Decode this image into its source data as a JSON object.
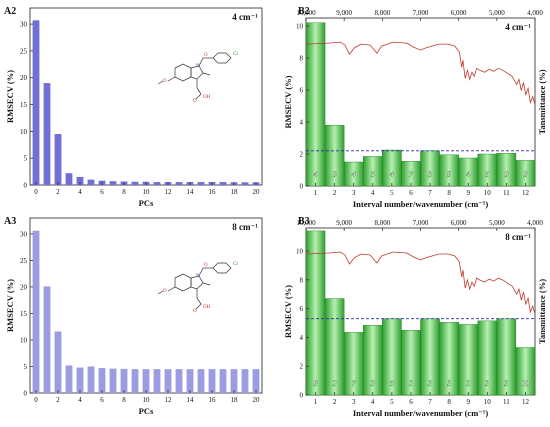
{
  "chart_data": [
    {
      "id": "A2",
      "type": "bar",
      "panel_label": "A2",
      "resolution": "4 cm⁻¹",
      "xlabel": "PCs",
      "ylabel": "RMSECV (%)",
      "categories": [
        0,
        1,
        2,
        3,
        4,
        5,
        6,
        7,
        8,
        9,
        10,
        11,
        12,
        13,
        14,
        15,
        16,
        17,
        18,
        19,
        20
      ],
      "values": [
        30.7,
        19.0,
        9.5,
        2.2,
        1.5,
        1.0,
        0.8,
        0.7,
        0.65,
        0.6,
        0.6,
        0.55,
        0.55,
        0.55,
        0.55,
        0.55,
        0.55,
        0.55,
        0.5,
        0.5,
        0.5
      ],
      "xticks": [
        0,
        2,
        4,
        6,
        8,
        10,
        12,
        14,
        16,
        18,
        20
      ],
      "ylim": [
        0,
        33
      ],
      "yticks": [
        0,
        5,
        10,
        15,
        20,
        25,
        30
      ],
      "bar_color": "#6f6fd6",
      "molecule_labels": [
        "Cl",
        "N",
        "O",
        "OH",
        "O",
        "O"
      ]
    },
    {
      "id": "A3",
      "type": "bar",
      "panel_label": "A3",
      "resolution": "8 cm⁻¹",
      "xlabel": "PCs",
      "ylabel": "RMSECV (%)",
      "categories": [
        0,
        1,
        2,
        3,
        4,
        5,
        6,
        7,
        8,
        9,
        10,
        11,
        12,
        13,
        14,
        15,
        16,
        17,
        18,
        19,
        20
      ],
      "values": [
        30.6,
        20.1,
        11.6,
        5.2,
        4.8,
        5.0,
        4.7,
        4.6,
        4.55,
        4.5,
        4.5,
        4.5,
        4.5,
        4.5,
        4.5,
        4.5,
        4.5,
        4.5,
        4.5,
        4.5,
        4.5
      ],
      "xticks": [
        0,
        2,
        4,
        6,
        8,
        10,
        12,
        14,
        16,
        18,
        20
      ],
      "ylim": [
        0,
        33
      ],
      "yticks": [
        0,
        5,
        10,
        15,
        20,
        25,
        30
      ],
      "bar_color": "#9c9ce3",
      "molecule_labels": [
        "Cl",
        "N",
        "O",
        "OH",
        "O",
        "O"
      ]
    },
    {
      "id": "B2",
      "type": "bar",
      "panel_label": "B2",
      "resolution": "4 cm⁻¹",
      "xlabel": "Interval number/wavenumber (cm⁻¹)",
      "ylabel": "RMSECV (%)",
      "y2label": "Tansmittance (%)",
      "categories": [
        1,
        2,
        3,
        4,
        5,
        6,
        7,
        8,
        9,
        10,
        11,
        12
      ],
      "values": [
        10.2,
        3.8,
        1.5,
        1.85,
        2.25,
        1.55,
        2.2,
        1.95,
        1.75,
        2.0,
        2.05,
        1.6
      ],
      "pcs": [
        "4",
        "9",
        "4",
        "5",
        "4",
        "7",
        "3",
        "9",
        "4",
        "5",
        "9",
        "9"
      ],
      "reference_line": 2.2,
      "ylim": [
        0,
        10.5
      ],
      "yticks": [
        0,
        2,
        4,
        6,
        8,
        10
      ],
      "top_axis_ticks": [
        "10,000",
        "9,000",
        "8,000",
        "7,000",
        "6,000",
        "5,000",
        "4,000"
      ],
      "top_axis_values": [
        10000,
        9000,
        8000,
        7000,
        6000,
        5000,
        4000
      ],
      "transmittance_line_color": "#c0392b"
    },
    {
      "id": "B3",
      "type": "bar",
      "panel_label": "B3",
      "resolution": "8 cm⁻¹",
      "xlabel": "Interval number/wavenumber (cm⁻¹)",
      "ylabel": "RMSECV (%)",
      "y2label": "Tansmittance (%)",
      "categories": [
        1,
        2,
        3,
        4,
        5,
        6,
        7,
        8,
        9,
        10,
        11,
        12
      ],
      "values": [
        11.4,
        6.7,
        4.35,
        4.85,
        5.3,
        4.5,
        5.3,
        5.05,
        4.9,
        5.15,
        5.3,
        3.3
      ],
      "pcs": [
        "9",
        "2",
        "7",
        "3",
        "5",
        "2",
        "3",
        "3",
        "2",
        "3",
        "3",
        "10"
      ],
      "reference_line": 5.3,
      "ylim": [
        0,
        11.6
      ],
      "yticks": [
        0,
        2,
        4,
        6,
        8,
        10
      ],
      "top_axis_ticks": [
        "10,000",
        "9,000",
        "8,000",
        "7,000",
        "6,000",
        "5,000",
        "4,000"
      ],
      "top_axis_values": [
        10000,
        9000,
        8000,
        7000,
        6000,
        5000,
        4000
      ],
      "transmittance_line_color": "#c0392b"
    }
  ]
}
